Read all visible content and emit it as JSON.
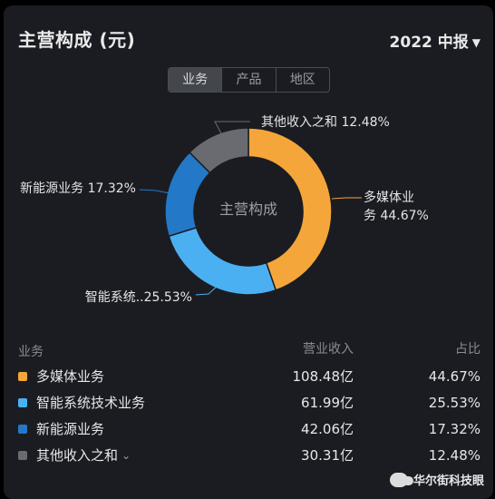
{
  "header": {
    "title": "主营构成 (元)",
    "period": "2022 中报",
    "caret": "▼"
  },
  "tabs": [
    {
      "label": "业务",
      "active": true
    },
    {
      "label": "产品",
      "active": false
    },
    {
      "label": "地区",
      "active": false
    }
  ],
  "chart_data": {
    "type": "pie",
    "center_label": "主营构成",
    "slices": [
      {
        "name": "多媒体业务",
        "label_line1": "多媒体业",
        "label_line2": "务 44.67%",
        "value": 44.67,
        "color": "#f5a63a"
      },
      {
        "name": "智能系统技术业务",
        "label_line1": "智能系统..25.53%",
        "value": 25.53,
        "color": "#4bb0f2"
      },
      {
        "name": "新能源业务",
        "label_line1": "新能源业务 17.32%",
        "value": 17.32,
        "color": "#2478c8"
      },
      {
        "name": "其他收入之和",
        "label_line1": "其他收入之和 12.48%",
        "value": 12.48,
        "color": "#6a6b70"
      }
    ]
  },
  "table": {
    "headers": [
      "业务",
      "营业收入",
      "占比"
    ],
    "rows": [
      {
        "name": "多媒体业务",
        "revenue": "108.48亿",
        "share": "44.67%",
        "color": "#f5a63a"
      },
      {
        "name": "智能系统技术业务",
        "revenue": "61.99亿",
        "share": "25.53%",
        "color": "#4bb0f2"
      },
      {
        "name": "新能源业务",
        "revenue": "42.06亿",
        "share": "17.32%",
        "color": "#2478c8"
      },
      {
        "name": "其他收入之和",
        "revenue": "30.31亿",
        "share": "12.48%",
        "color": "#6a6b70",
        "expand": "⌄"
      }
    ]
  },
  "watermark": {
    "icon": "wechat-icon",
    "text": "华尔街科技眼"
  }
}
